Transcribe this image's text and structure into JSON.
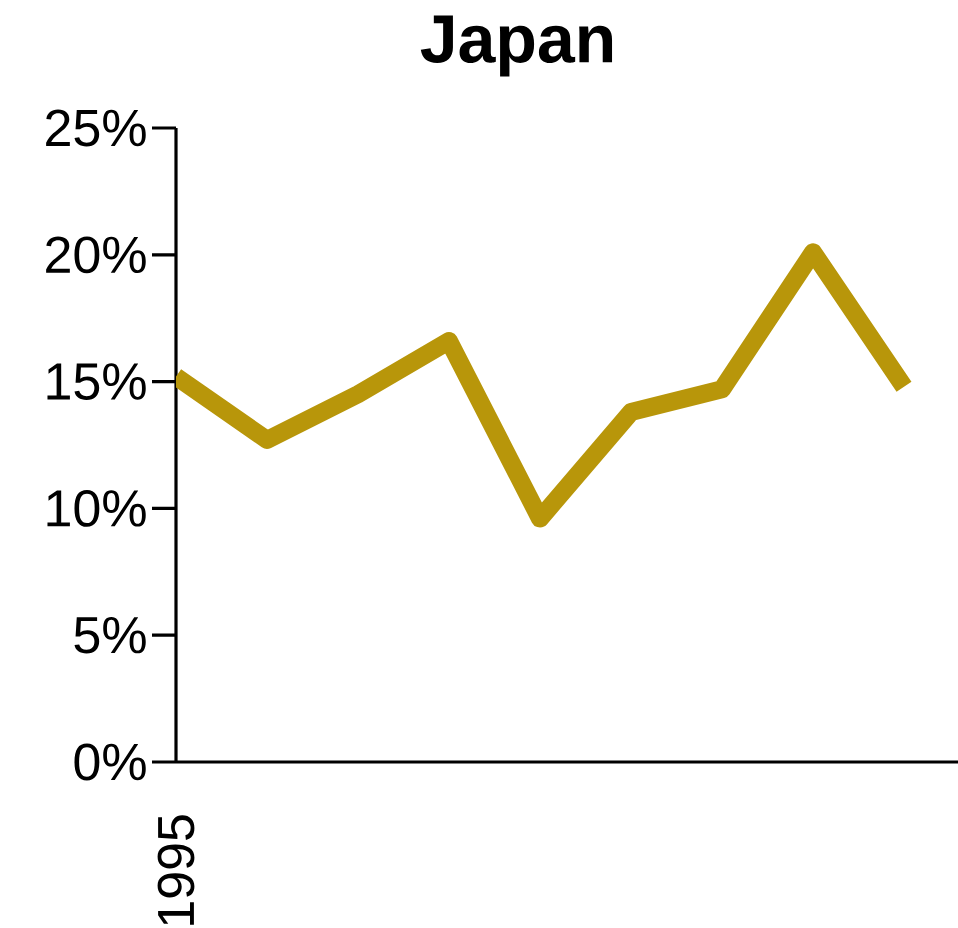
{
  "chart_data": {
    "type": "line",
    "title": "Japan",
    "categories": [
      "1995",
      null,
      null,
      null,
      null,
      null,
      null,
      null,
      null
    ],
    "values": [
      15.2,
      12.7,
      14.5,
      16.6,
      9.6,
      13.8,
      14.7,
      20.1,
      14.8
    ],
    "color": "#b8960a",
    "line_style": "solid",
    "ylim": [
      0,
      25
    ],
    "yticks": [
      {
        "value": 0,
        "label": "0%"
      },
      {
        "value": 5,
        "label": "5%"
      },
      {
        "value": 10,
        "label": "10%"
      },
      {
        "value": 15,
        "label": "15%"
      },
      {
        "value": 20,
        "label": "20%"
      },
      {
        "value": 25,
        "label": "25%"
      }
    ]
  }
}
